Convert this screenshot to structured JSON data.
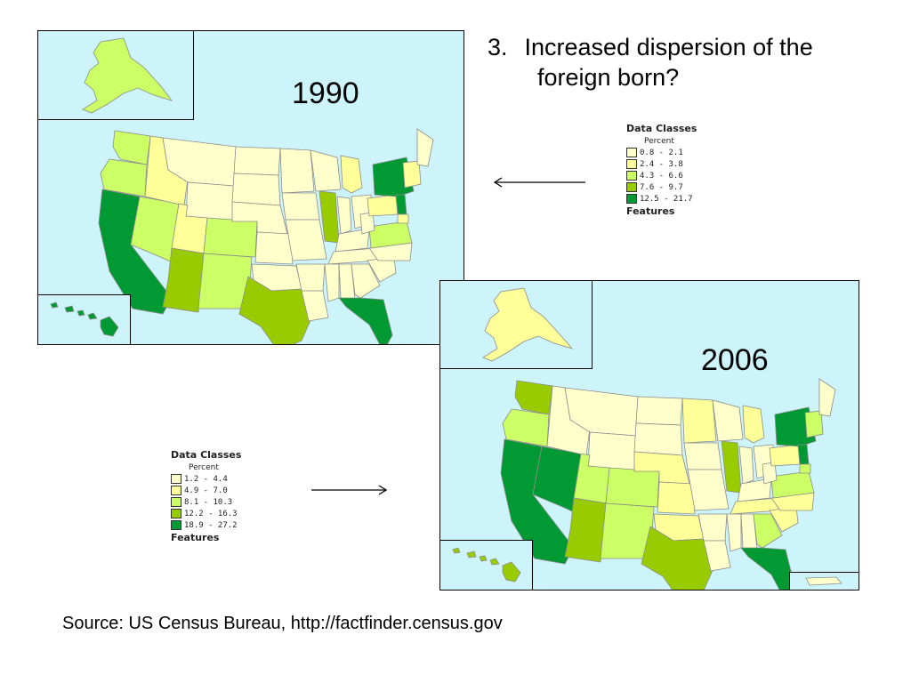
{
  "title": {
    "number": "3.",
    "line1": "Increased dispersion of the",
    "line2": "foreign born?"
  },
  "maps": [
    {
      "year": "1990",
      "legend": {
        "header": "Data Classes",
        "subheader": "Percent",
        "classes": [
          {
            "range": "0.8 - 2.1",
            "color": "#ffffcc"
          },
          {
            "range": "2.4 - 3.8",
            "color": "#ffff99"
          },
          {
            "range": "4.3 - 6.6",
            "color": "#ccff66"
          },
          {
            "range": "7.6 - 9.7",
            "color": "#99cc00"
          },
          {
            "range": "12.5 - 21.7",
            "color": "#009933"
          }
        ],
        "features": "Features"
      }
    },
    {
      "year": "2006",
      "legend": {
        "header": "Data Classes",
        "subheader": "Percent",
        "classes": [
          {
            "range": "1.2 - 4.4",
            "color": "#ffffcc"
          },
          {
            "range": "4.9 - 7.0",
            "color": "#ffff99"
          },
          {
            "range": "8.1 - 10.3",
            "color": "#ccff66"
          },
          {
            "range": "12.2 - 16.3",
            "color": "#99cc00"
          },
          {
            "range": "18.9 - 27.2",
            "color": "#009933"
          }
        ],
        "features": "Features"
      }
    }
  ],
  "source": "Source:  US Census Bureau, http://factfinder.census.gov",
  "colors": {
    "ocean": "#ccf4fa",
    "class1": "#ffffcc",
    "class2": "#ffff99",
    "class3": "#ccff66",
    "class4": "#99cc00",
    "class5": "#009933"
  }
}
